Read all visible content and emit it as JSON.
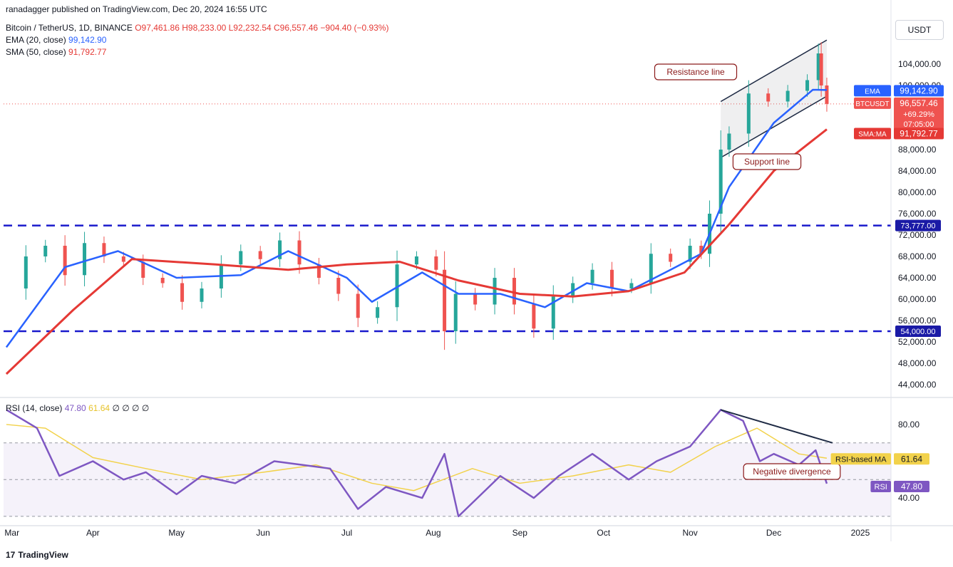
{
  "header": {
    "published": "ranadagger published on TradingView.com, Dec 20, 2024 16:55 UTC",
    "symbol": "Bitcoin / TetherUS, 1D, BINANCE",
    "ohlc": "O97,461.86 H98,233.00 L92,232.54 C96,557.46 −904.40 (−0.93%)",
    "ema_label": "EMA (20, close)",
    "ema_value": "99,142.90",
    "sma_label": "SMA (50, close)",
    "sma_value": "91,792.77"
  },
  "currency_button": "USDT",
  "rsi_legend": {
    "label": "RSI (14, close)",
    "rsi": "47.80",
    "ma": "61.64",
    "rest": "∅ ∅ ∅ ∅"
  },
  "footer": {
    "brand": "TradingView"
  },
  "colors": {
    "bull": "#26a69a",
    "bear": "#ef5350",
    "ema": "#2962ff",
    "sma": "#e53935",
    "rsi": "#7e57c2",
    "rsi_ma": "#f2d24b",
    "dash": "#1a1acc"
  },
  "chart_data": [
    {
      "type": "candlestick",
      "title": "Bitcoin / TetherUS, 1D, BINANCE",
      "ylim": [
        42000,
        110000
      ],
      "y_ticks": [
        104000,
        100000,
        88000,
        84000,
        80000,
        76000,
        72000,
        68000,
        64000,
        60000,
        56000,
        52000,
        48000,
        44000
      ],
      "x_ticks": [
        "Mar",
        "Apr",
        "May",
        "Jun",
        "Jul",
        "Aug",
        "Sep",
        "Oct",
        "Nov",
        "Dec",
        "2025"
      ],
      "horizontal_levels": [
        73777,
        54000
      ],
      "last_price": 96557.46,
      "price_tag": {
        "symbol": "BTCUSDT",
        "value": "96,557.46",
        "change": "+69.29%",
        "countdown": "07:05:00"
      },
      "ema_tag": {
        "label": "EMA",
        "value": "99,142.90"
      },
      "sma_tag": {
        "label": "SMA:MA",
        "value": "91,792.77"
      },
      "level_tags": [
        "73,777.00",
        "54,000.00"
      ],
      "annotations": [
        "Resistance line",
        "Support line"
      ],
      "series": [
        {
          "name": "Close (approx.)",
          "x": [
            "2024-03-01",
            "2024-03-08",
            "2024-03-15",
            "2024-03-22",
            "2024-03-29",
            "2024-04-05",
            "2024-04-12",
            "2024-04-19",
            "2024-04-26",
            "2024-05-03",
            "2024-05-10",
            "2024-05-17",
            "2024-05-24",
            "2024-05-31",
            "2024-06-07",
            "2024-06-14",
            "2024-06-21",
            "2024-06-28",
            "2024-07-05",
            "2024-07-12",
            "2024-07-19",
            "2024-07-26",
            "2024-08-02",
            "2024-08-05",
            "2024-08-09",
            "2024-08-16",
            "2024-08-23",
            "2024-08-30",
            "2024-09-06",
            "2024-09-13",
            "2024-09-20",
            "2024-09-27",
            "2024-10-04",
            "2024-10-11",
            "2024-10-18",
            "2024-10-25",
            "2024-11-01",
            "2024-11-05",
            "2024-11-08",
            "2024-11-12",
            "2024-11-15",
            "2024-11-22",
            "2024-11-29",
            "2024-12-06",
            "2024-12-13",
            "2024-12-17",
            "2024-12-18",
            "2024-12-20"
          ],
          "values": [
            62000,
            68000,
            70000,
            64500,
            70500,
            68000,
            67000,
            64000,
            63000,
            59500,
            62000,
            66500,
            69000,
            67500,
            71000,
            66500,
            64000,
            61000,
            56500,
            58500,
            66500,
            68000,
            65500,
            54000,
            61000,
            59000,
            64000,
            59000,
            54500,
            60500,
            63000,
            65500,
            62000,
            63000,
            68500,
            67000,
            70000,
            68500,
            76000,
            88000,
            91000,
            98500,
            97000,
            99000,
            101000,
            106000,
            100000,
            96557
          ]
        },
        {
          "name": "EMA (20, close)",
          "x": [
            "2024-03-01",
            "2024-03-22",
            "2024-04-10",
            "2024-05-01",
            "2024-05-24",
            "2024-06-10",
            "2024-07-01",
            "2024-07-10",
            "2024-07-28",
            "2024-08-10",
            "2024-08-25",
            "2024-09-10",
            "2024-09-25",
            "2024-10-10",
            "2024-10-25",
            "2024-11-05",
            "2024-11-15",
            "2024-12-01",
            "2024-12-15",
            "2024-12-20"
          ],
          "values": [
            51000,
            66000,
            69000,
            64000,
            64500,
            69000,
            64000,
            59500,
            65000,
            61000,
            61000,
            58500,
            63000,
            61500,
            65500,
            68500,
            81000,
            93000,
            99200,
            99142
          ]
        },
        {
          "name": "SMA (50, close)",
          "x": [
            "2024-03-01",
            "2024-03-25",
            "2024-04-15",
            "2024-05-15",
            "2024-06-10",
            "2024-07-01",
            "2024-07-20",
            "2024-08-10",
            "2024-09-01",
            "2024-09-20",
            "2024-10-10",
            "2024-10-30",
            "2024-11-15",
            "2024-12-01",
            "2024-12-20"
          ],
          "values": [
            46000,
            58000,
            67500,
            66500,
            65500,
            66500,
            67000,
            63500,
            61000,
            60500,
            61500,
            65000,
            74000,
            84000,
            91792
          ]
        }
      ]
    },
    {
      "type": "line",
      "title": "RSI (14, close)",
      "ylim": [
        28,
        92
      ],
      "y_ticks": [
        80,
        40
      ],
      "band": [
        30,
        70
      ],
      "annotations": [
        "Negative divergence"
      ],
      "tags": [
        {
          "label": "RSI-based MA",
          "value": "61.64"
        },
        {
          "label": "RSI",
          "value": "47.80"
        }
      ],
      "series": [
        {
          "name": "RSI",
          "x": [
            "2024-03-01",
            "2024-03-12",
            "2024-03-20",
            "2024-04-01",
            "2024-04-12",
            "2024-04-20",
            "2024-05-01",
            "2024-05-10",
            "2024-05-22",
            "2024-06-05",
            "2024-06-15",
            "2024-06-25",
            "2024-07-05",
            "2024-07-15",
            "2024-07-28",
            "2024-08-05",
            "2024-08-10",
            "2024-08-25",
            "2024-09-06",
            "2024-09-15",
            "2024-09-27",
            "2024-10-10",
            "2024-10-20",
            "2024-11-01",
            "2024-11-12",
            "2024-11-20",
            "2024-11-26",
            "2024-12-01",
            "2024-12-10",
            "2024-12-16",
            "2024-12-20"
          ],
          "values": [
            88,
            78,
            52,
            60,
            50,
            54,
            42,
            52,
            48,
            60,
            58,
            56,
            34,
            46,
            40,
            64,
            30,
            52,
            40,
            52,
            64,
            50,
            60,
            68,
            88,
            82,
            60,
            64,
            58,
            66,
            47.8
          ]
        },
        {
          "name": "RSI-based MA",
          "x": [
            "2024-03-01",
            "2024-03-15",
            "2024-04-01",
            "2024-04-20",
            "2024-05-10",
            "2024-06-01",
            "2024-06-20",
            "2024-07-10",
            "2024-07-25",
            "2024-08-15",
            "2024-09-01",
            "2024-09-20",
            "2024-10-10",
            "2024-10-25",
            "2024-11-10",
            "2024-11-25",
            "2024-12-10",
            "2024-12-20"
          ],
          "values": [
            80,
            78,
            62,
            56,
            50,
            54,
            58,
            48,
            44,
            56,
            48,
            52,
            58,
            54,
            68,
            78,
            64,
            61.64
          ]
        }
      ]
    }
  ]
}
